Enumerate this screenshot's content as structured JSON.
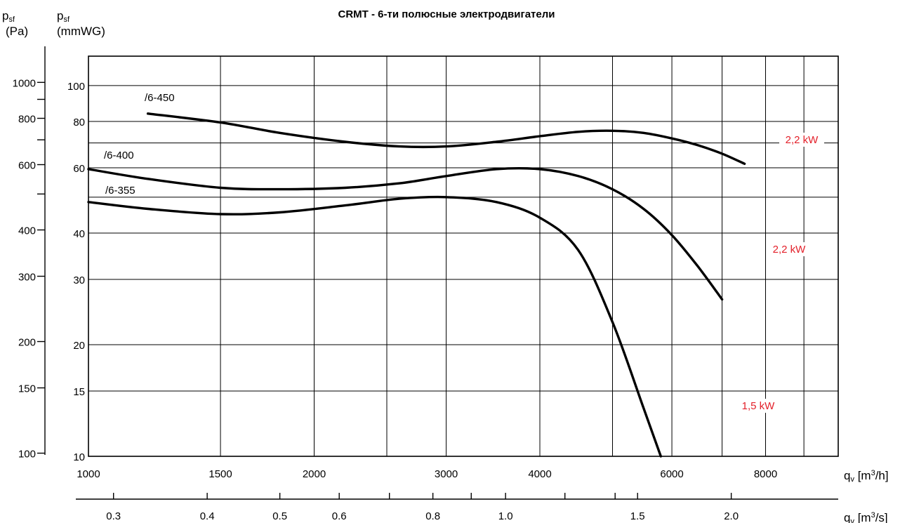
{
  "chart_data": {
    "type": "line",
    "title": "CRMT  -  6-ти полюсные электродвигатели",
    "x_scale": "log",
    "y_scale": "log",
    "xlabel_flow_h": "q_v [m³/h]",
    "xlabel_flow_s": "q_v [m³/s]",
    "ylabel_pa": "p_sf [Pa]",
    "ylabel_mmwg": "p_sf [mmWG]",
    "xlim_m3h": [
      1000,
      10000
    ],
    "ylim_mmwg": [
      10,
      120
    ],
    "grid": true,
    "legend": "labels on curves",
    "x_ticks_m3h": [
      "1000",
      "1500",
      "2000",
      "3000",
      "4000",
      "6000",
      "8000"
    ],
    "x_ticks_m3s": [
      "0.3",
      "0.4",
      "0.5",
      "0.6",
      "0.8",
      "1.0",
      "1.5",
      "2.0"
    ],
    "y_ticks_mmwg": [
      "100",
      "80",
      "60",
      "40",
      "30",
      "20",
      "15",
      "10"
    ],
    "y_ticks_pa": [
      "1000",
      "800",
      "600",
      "400",
      "300",
      "200",
      "150",
      "100"
    ],
    "series": [
      {
        "name": "/6-450",
        "power": "2,2 kW",
        "x": [
          1200,
          1500,
          1800,
          2200,
          2600,
          3000,
          3500,
          4000,
          4500,
          5000,
          5500,
          6000,
          6500,
          7000,
          7500
        ],
        "y": [
          84,
          79.5,
          74.5,
          70.5,
          68.5,
          68.5,
          70.5,
          73,
          75,
          75.5,
          74.5,
          72,
          69,
          65.5,
          61.5
        ]
      },
      {
        "name": "/6-400",
        "power": "2,2 kW",
        "x": [
          1000,
          1200,
          1500,
          1800,
          2200,
          2600,
          3000,
          3500,
          4000,
          4500,
          5000,
          5500,
          6000,
          6500,
          7000
        ],
        "y": [
          59.5,
          56,
          53,
          52.5,
          53,
          54.5,
          57,
          59.5,
          59.5,
          57,
          52.5,
          46.5,
          39.5,
          32.5,
          26.5
        ]
      },
      {
        "name": "/6-355",
        "power": "1,5 kW",
        "x": [
          1000,
          1200,
          1500,
          1800,
          2200,
          2600,
          3000,
          3500,
          4000,
          4500,
          5000,
          5500,
          5800
        ],
        "y": [
          48.5,
          46.5,
          45,
          45.5,
          47.5,
          49.5,
          50,
          48.5,
          44,
          36,
          23,
          13.5,
          10
        ]
      }
    ]
  },
  "colors": {
    "curve": "#000000",
    "grid": "#000000",
    "power_label": "#e3202a"
  }
}
